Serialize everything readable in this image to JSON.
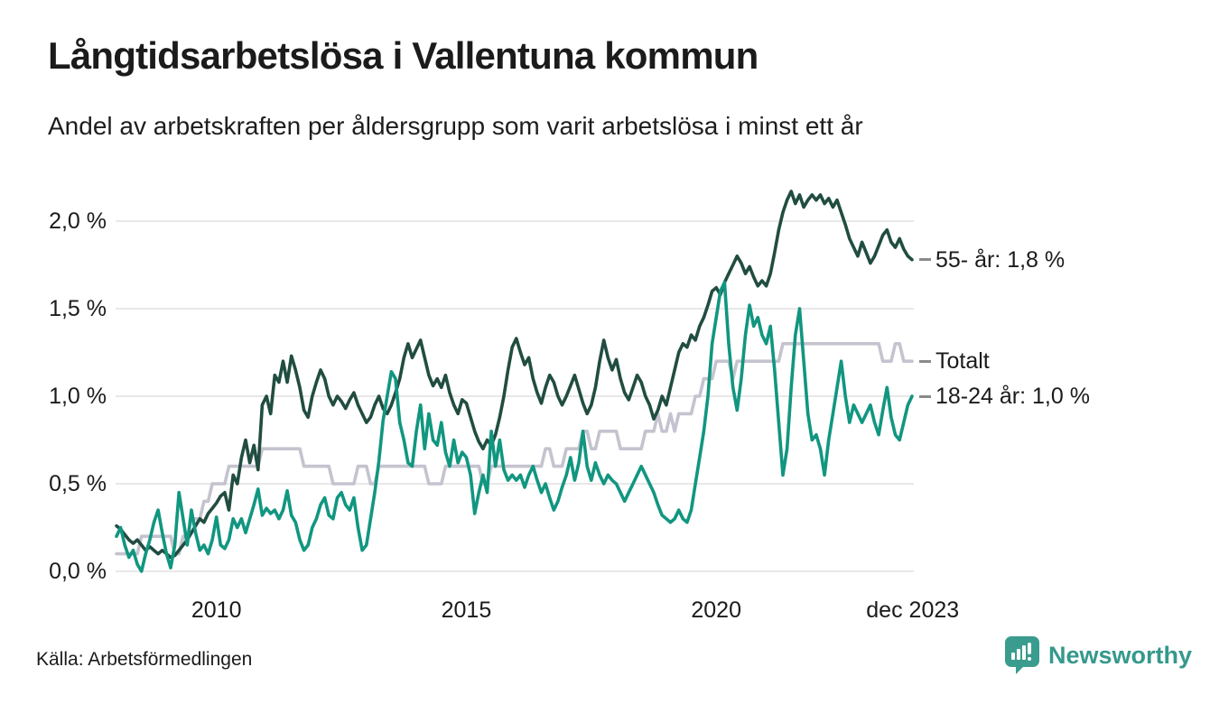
{
  "header": {
    "title": "Långtidsarbetslösa i Vallentuna kommun",
    "subtitle": "Andel av arbetskraften per åldersgrupp som varit arbetslösa i minst ett år"
  },
  "footer": {
    "source": "Källa: Arbetsförmedlingen",
    "brand": {
      "name": "Newsworthy",
      "color": "#35998b",
      "icon": "newsworthy-speech-bubble-bar-chart"
    }
  },
  "colors": {
    "grid": "#e4e4e4",
    "text": "#1b1b1b",
    "end_label_dash": "#8a8a8a",
    "series_55": "#214d41",
    "series_total": "#c4c3cf",
    "series_1824": "#119680"
  },
  "chart_data": {
    "type": "line",
    "title": "Långtidsarbetslösa i Vallentuna kommun",
    "subtitle": "Andel av arbetskraften per åldersgrupp som varit arbetslösa i minst ett år",
    "x_unit": "month",
    "x_start_year": 2008,
    "x_end_year_exclusive": 2024,
    "ylim": [
      0,
      2.1
    ],
    "grid": true,
    "legend_position": "right-end-labels",
    "y_ticks": [
      {
        "value": 0.0,
        "label": "0,0 %"
      },
      {
        "value": 0.5,
        "label": "0,5 %"
      },
      {
        "value": 1.0,
        "label": "1,0 %"
      },
      {
        "value": 1.5,
        "label": "1,5 %"
      },
      {
        "value": 2.0,
        "label": "2,0 %"
      }
    ],
    "x_ticks": [
      {
        "year": 2010.0,
        "label": "2010"
      },
      {
        "year": 2015.0,
        "label": "2015"
      },
      {
        "year": 2020.0,
        "label": "2020"
      },
      {
        "year": 2023.93,
        "label": "dec 2023"
      }
    ],
    "series": [
      {
        "name": "Totalt",
        "end_label": "Totalt",
        "end_value_shown": null,
        "color": "#c4c3cf",
        "values": [
          0.1,
          0.1,
          0.1,
          0.1,
          0.1,
          0.1,
          0.2,
          0.2,
          0.2,
          0.2,
          0.2,
          0.2,
          0.2,
          0.2,
          0.1,
          0.1,
          0.2,
          0.2,
          0.3,
          0.3,
          0.3,
          0.4,
          0.4,
          0.5,
          0.5,
          0.5,
          0.5,
          0.6,
          0.6,
          0.6,
          0.6,
          0.6,
          0.6,
          0.6,
          0.6,
          0.7,
          0.7,
          0.7,
          0.7,
          0.7,
          0.7,
          0.7,
          0.7,
          0.7,
          0.7,
          0.6,
          0.6,
          0.6,
          0.6,
          0.6,
          0.6,
          0.6,
          0.5,
          0.5,
          0.5,
          0.5,
          0.5,
          0.5,
          0.6,
          0.6,
          0.6,
          0.5,
          0.5,
          0.6,
          0.6,
          0.6,
          0.6,
          0.6,
          0.6,
          0.6,
          0.6,
          0.6,
          0.6,
          0.6,
          0.6,
          0.5,
          0.5,
          0.5,
          0.5,
          0.6,
          0.6,
          0.6,
          0.6,
          0.6,
          0.6,
          0.6,
          0.6,
          0.6,
          0.5,
          0.5,
          0.6,
          0.6,
          0.6,
          0.6,
          0.6,
          0.6,
          0.6,
          0.6,
          0.6,
          0.6,
          0.6,
          0.6,
          0.6,
          0.7,
          0.7,
          0.6,
          0.6,
          0.6,
          0.7,
          0.7,
          0.7,
          0.7,
          0.8,
          0.8,
          0.7,
          0.7,
          0.8,
          0.8,
          0.8,
          0.8,
          0.8,
          0.7,
          0.7,
          0.7,
          0.7,
          0.7,
          0.7,
          0.8,
          0.8,
          0.8,
          0.9,
          0.8,
          0.8,
          0.9,
          0.8,
          0.9,
          0.9,
          0.9,
          0.9,
          1.0,
          1.0,
          1.1,
          1.1,
          1.1,
          1.2,
          1.2,
          1.2,
          1.2,
          1.1,
          1.2,
          1.2,
          1.2,
          1.2,
          1.2,
          1.2,
          1.2,
          1.2,
          1.2,
          1.2,
          1.2,
          1.3,
          1.3,
          1.3,
          1.3,
          1.3,
          1.3,
          1.3,
          1.3,
          1.3,
          1.3,
          1.3,
          1.3,
          1.3,
          1.3,
          1.3,
          1.3,
          1.3,
          1.3,
          1.3,
          1.3,
          1.3,
          1.3,
          1.3,
          1.3,
          1.2,
          1.2,
          1.2,
          1.3,
          1.3,
          1.2,
          1.2,
          1.2
        ]
      },
      {
        "name": "55- år",
        "end_label": "55- år: 1,8 %",
        "end_value_shown": "1,8 %",
        "color": "#214d41",
        "values": [
          0.26,
          0.24,
          0.21,
          0.18,
          0.16,
          0.18,
          0.15,
          0.12,
          0.14,
          0.12,
          0.1,
          0.12,
          0.1,
          0.08,
          0.09,
          0.12,
          0.15,
          0.18,
          0.22,
          0.26,
          0.3,
          0.28,
          0.33,
          0.36,
          0.39,
          0.43,
          0.45,
          0.35,
          0.55,
          0.5,
          0.65,
          0.75,
          0.62,
          0.72,
          0.58,
          0.95,
          1.0,
          0.9,
          1.12,
          1.08,
          1.2,
          1.08,
          1.23,
          1.15,
          1.05,
          0.92,
          0.88,
          1.0,
          1.08,
          1.15,
          1.1,
          1.0,
          0.95,
          1.0,
          0.97,
          0.93,
          0.98,
          1.02,
          0.95,
          0.9,
          0.85,
          0.88,
          0.95,
          1.0,
          0.93,
          0.9,
          0.95,
          1.02,
          1.1,
          1.22,
          1.3,
          1.22,
          1.27,
          1.32,
          1.22,
          1.12,
          1.06,
          1.1,
          1.05,
          1.12,
          1.02,
          0.95,
          0.9,
          0.98,
          0.96,
          0.88,
          0.8,
          0.74,
          0.7,
          0.75,
          0.72,
          0.78,
          0.88,
          1.0,
          1.15,
          1.28,
          1.33,
          1.25,
          1.18,
          1.22,
          1.1,
          1.02,
          0.96,
          1.05,
          1.12,
          1.08,
          1.0,
          0.95,
          1.0,
          1.06,
          1.12,
          1.04,
          0.96,
          0.9,
          0.95,
          1.05,
          1.2,
          1.32,
          1.22,
          1.15,
          1.21,
          1.1,
          1.02,
          0.98,
          1.05,
          1.12,
          1.08,
          1.0,
          0.95,
          0.87,
          0.92,
          1.0,
          0.95,
          1.05,
          1.15,
          1.25,
          1.3,
          1.28,
          1.35,
          1.32,
          1.4,
          1.45,
          1.52,
          1.6,
          1.62,
          1.58,
          1.65,
          1.7,
          1.75,
          1.8,
          1.76,
          1.7,
          1.74,
          1.68,
          1.63,
          1.66,
          1.63,
          1.7,
          1.82,
          1.95,
          2.05,
          2.12,
          2.17,
          2.1,
          2.15,
          2.08,
          2.12,
          2.15,
          2.12,
          2.15,
          2.1,
          2.13,
          2.08,
          2.12,
          2.05,
          1.98,
          1.9,
          1.85,
          1.8,
          1.88,
          1.82,
          1.76,
          1.8,
          1.86,
          1.92,
          1.95,
          1.88,
          1.85,
          1.9,
          1.84,
          1.8,
          1.78
        ]
      },
      {
        "name": "18-24 år",
        "end_label": "18-24 år: 1,0 %",
        "end_value_shown": "1,0 %",
        "color": "#119680",
        "values": [
          0.2,
          0.25,
          0.15,
          0.08,
          0.12,
          0.04,
          0.0,
          0.1,
          0.18,
          0.28,
          0.35,
          0.22,
          0.1,
          0.02,
          0.15,
          0.45,
          0.3,
          0.15,
          0.35,
          0.22,
          0.12,
          0.15,
          0.1,
          0.18,
          0.31,
          0.15,
          0.13,
          0.18,
          0.3,
          0.25,
          0.3,
          0.22,
          0.3,
          0.38,
          0.47,
          0.32,
          0.36,
          0.33,
          0.35,
          0.3,
          0.35,
          0.46,
          0.32,
          0.28,
          0.18,
          0.12,
          0.15,
          0.25,
          0.3,
          0.38,
          0.42,
          0.32,
          0.3,
          0.42,
          0.45,
          0.38,
          0.35,
          0.42,
          0.25,
          0.12,
          0.15,
          0.3,
          0.45,
          0.63,
          0.86,
          1.0,
          1.14,
          1.1,
          0.85,
          0.75,
          0.62,
          0.6,
          0.8,
          0.95,
          0.7,
          0.9,
          0.75,
          0.72,
          0.85,
          0.68,
          0.6,
          0.75,
          0.62,
          0.68,
          0.65,
          0.55,
          0.33,
          0.45,
          0.55,
          0.45,
          0.8,
          0.6,
          0.75,
          0.58,
          0.52,
          0.55,
          0.52,
          0.55,
          0.48,
          0.55,
          0.6,
          0.52,
          0.45,
          0.5,
          0.42,
          0.35,
          0.4,
          0.48,
          0.55,
          0.65,
          0.52,
          0.62,
          0.8,
          0.6,
          0.52,
          0.62,
          0.55,
          0.5,
          0.55,
          0.52,
          0.5,
          0.45,
          0.4,
          0.45,
          0.5,
          0.55,
          0.6,
          0.55,
          0.5,
          0.45,
          0.38,
          0.32,
          0.3,
          0.28,
          0.3,
          0.35,
          0.3,
          0.28,
          0.35,
          0.5,
          0.65,
          0.8,
          1.0,
          1.3,
          1.45,
          1.6,
          1.65,
          1.3,
          1.05,
          0.92,
          1.1,
          1.35,
          1.52,
          1.4,
          1.45,
          1.35,
          1.3,
          1.4,
          1.15,
          0.85,
          0.55,
          0.7,
          1.05,
          1.35,
          1.5,
          1.2,
          0.9,
          0.75,
          0.78,
          0.7,
          0.55,
          0.75,
          0.9,
          1.05,
          1.2,
          1.0,
          0.85,
          0.95,
          0.9,
          0.85,
          0.9,
          0.95,
          0.85,
          0.78,
          0.92,
          1.05,
          0.88,
          0.78,
          0.75,
          0.85,
          0.95,
          1.0
        ]
      }
    ]
  }
}
